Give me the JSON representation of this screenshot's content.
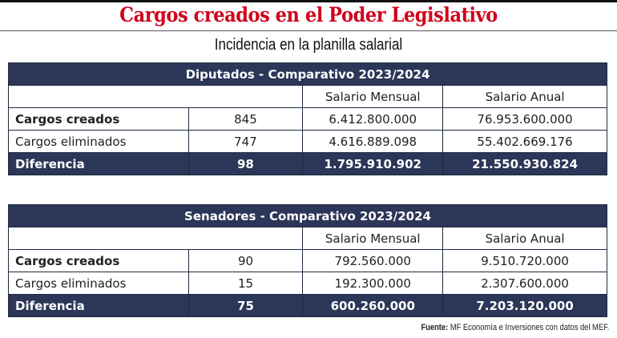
{
  "title": "Cargos creados en el Poder Legislativo",
  "subtitle": "Incidencia en la planilla salarial",
  "tables": [
    {
      "heading": "Diputados - Comparativo 2023/2024",
      "col_mensual": "Salario Mensual",
      "col_anual": "Salario Anual",
      "rows": [
        {
          "label": "Cargos creados",
          "count": "845",
          "mensual": "6.412.800.000",
          "anual": "76.953.600.000"
        },
        {
          "label": "Cargos eliminados",
          "count": "747",
          "mensual": "4.616.889.098",
          "anual": "55.402.669.176"
        },
        {
          "label": "Diferencia",
          "count": "98",
          "mensual": "1.795.910.902",
          "anual": "21.550.930.824"
        }
      ]
    },
    {
      "heading": "Senadores - Comparativo 2023/2024",
      "col_mensual": "Salario Mensual",
      "col_anual": "Salario Anual",
      "rows": [
        {
          "label": "Cargos creados",
          "count": "90",
          "mensual": "792.560.000",
          "anual": "9.510.720.000"
        },
        {
          "label": "Cargos eliminados",
          "count": "15",
          "mensual": "192.300.000",
          "anual": "2.307.600.000"
        },
        {
          "label": "Diferencia",
          "count": "75",
          "mensual": "600.260.000",
          "anual": "7.203.120.000"
        }
      ]
    }
  ],
  "source_label": "Fuente:",
  "source_text": " MF Economía e Inversiones con datos del MEF."
}
